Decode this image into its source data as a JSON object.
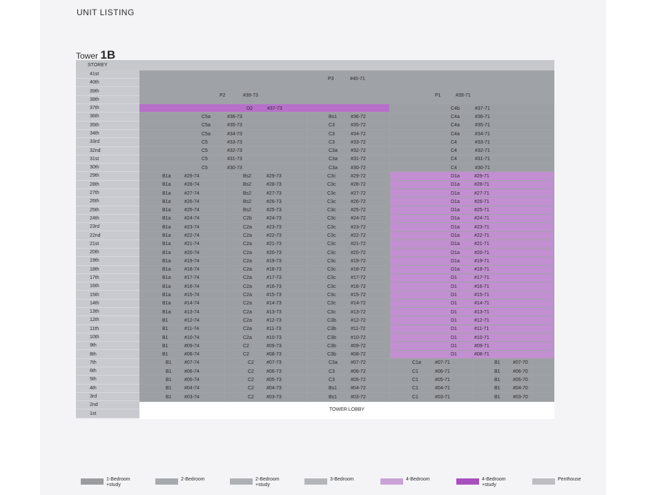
{
  "header": {
    "title": "UNIT LISTING"
  },
  "tower": {
    "label_prefix": "Tower",
    "label_suffix": "1B"
  },
  "table": {
    "storey_header": "STOREY",
    "storeys": [
      "41st",
      "40th",
      "39th",
      "38th",
      "37th",
      "36th",
      "35th",
      "34th",
      "33rd",
      "32nd",
      "31st",
      "30th",
      "29th",
      "28th",
      "27th",
      "26th",
      "25th",
      "24th",
      "23rd",
      "22nd",
      "21st",
      "20th",
      "19th",
      "18th",
      "17th",
      "16th",
      "15th",
      "14th",
      "13th",
      "12th",
      "11th",
      "10th",
      "9th",
      "8th",
      "7th",
      "6th",
      "5th",
      "4th",
      "3rd",
      "2nd",
      "1st"
    ],
    "penthouse_top": {
      "type": "P3",
      "unit": "#40-71"
    },
    "penthouse_left": {
      "type": "P2",
      "unit": "#39-73"
    },
    "penthouse_right": {
      "type": "P1",
      "unit": "#39-71"
    },
    "d2_row": {
      "type": "D2",
      "unit": "#37-73"
    },
    "d2_right": {
      "type": "C4b",
      "unit": "#37-71"
    },
    "upper_rows": [
      {
        "a": [
          "C5a",
          "#36-73"
        ],
        "b": [
          "Bs1",
          "#36-72"
        ],
        "c": [
          "C4a",
          "#36-71"
        ]
      },
      {
        "a": [
          "C5a",
          "#35-73"
        ],
        "b": [
          "C3",
          "#35-72"
        ],
        "c": [
          "C4a",
          "#35-71"
        ]
      },
      {
        "a": [
          "C5a",
          "#34-73"
        ],
        "b": [
          "C3",
          "#34-72"
        ],
        "c": [
          "C4a",
          "#34-71"
        ]
      },
      {
        "a": [
          "C5",
          "#33-73"
        ],
        "b": [
          "C3",
          "#33-72"
        ],
        "c": [
          "C4",
          "#33-71"
        ]
      },
      {
        "a": [
          "C5",
          "#32-73"
        ],
        "b": [
          "C3a",
          "#32-72"
        ],
        "c": [
          "C4",
          "#32-71"
        ]
      },
      {
        "a": [
          "C5",
          "#31-73"
        ],
        "b": [
          "C3a",
          "#31-72"
        ],
        "c": [
          "C4",
          "#31-71"
        ]
      },
      {
        "a": [
          "C5",
          "#30-73"
        ],
        "b": [
          "C3a",
          "#30-72"
        ],
        "c": [
          "C4",
          "#30-71"
        ]
      }
    ],
    "mid_rows": [
      {
        "a": [
          "B1a",
          "#29-74"
        ],
        "b": [
          "Bs2",
          "#29-73"
        ],
        "c": [
          "C3c",
          "#29-72"
        ],
        "d": [
          "D1a",
          "#29-71"
        ]
      },
      {
        "a": [
          "B1a",
          "#28-74"
        ],
        "b": [
          "Bs2",
          "#28-73"
        ],
        "c": [
          "C3c",
          "#28-72"
        ],
        "d": [
          "D1a",
          "#28-71"
        ]
      },
      {
        "a": [
          "B1a",
          "#27-74"
        ],
        "b": [
          "Bs2",
          "#27-73"
        ],
        "c": [
          "C3c",
          "#27-72"
        ],
        "d": [
          "D1a",
          "#27-71"
        ]
      },
      {
        "a": [
          "B1a",
          "#26-74"
        ],
        "b": [
          "Bs2",
          "#26-73"
        ],
        "c": [
          "C3c",
          "#26-72"
        ],
        "d": [
          "D1a",
          "#26-71"
        ]
      },
      {
        "a": [
          "B1a",
          "#25-74"
        ],
        "b": [
          "Bs2",
          "#25-73"
        ],
        "c": [
          "C3c",
          "#25-72"
        ],
        "d": [
          "D1a",
          "#25-71"
        ]
      },
      {
        "a": [
          "B1a",
          "#24-74"
        ],
        "b": [
          "C2b",
          "#24-73"
        ],
        "c": [
          "C3c",
          "#24-72"
        ],
        "d": [
          "D1a",
          "#24-71"
        ]
      },
      {
        "a": [
          "B1a",
          "#23-74"
        ],
        "b": [
          "C2a",
          "#23-73"
        ],
        "c": [
          "C3c",
          "#23-72"
        ],
        "d": [
          "D1a",
          "#23-71"
        ]
      },
      {
        "a": [
          "B1a",
          "#22-74"
        ],
        "b": [
          "C2a",
          "#22-73"
        ],
        "c": [
          "C3c",
          "#22-72"
        ],
        "d": [
          "D1a",
          "#22-71"
        ]
      },
      {
        "a": [
          "B1a",
          "#21-74"
        ],
        "b": [
          "C2a",
          "#21-73"
        ],
        "c": [
          "C3c",
          "#21-72"
        ],
        "d": [
          "D1a",
          "#21-71"
        ]
      },
      {
        "a": [
          "B1a",
          "#20-74"
        ],
        "b": [
          "C2a",
          "#20-73"
        ],
        "c": [
          "C3c",
          "#20-72"
        ],
        "d": [
          "D1a",
          "#20-71"
        ]
      },
      {
        "a": [
          "B1a",
          "#19-74"
        ],
        "b": [
          "C2a",
          "#19-73"
        ],
        "c": [
          "C3c",
          "#19-72"
        ],
        "d": [
          "D1a",
          "#19-71"
        ]
      },
      {
        "a": [
          "B1a",
          "#18-74"
        ],
        "b": [
          "C2a",
          "#18-73"
        ],
        "c": [
          "C3c",
          "#18-72"
        ],
        "d": [
          "D1a",
          "#18-71"
        ]
      },
      {
        "a": [
          "B1a",
          "#17-74"
        ],
        "b": [
          "C2a",
          "#17-73"
        ],
        "c": [
          "C3c",
          "#17-72"
        ],
        "d": [
          "D1",
          "#17-71"
        ]
      },
      {
        "a": [
          "B1a",
          "#16-74"
        ],
        "b": [
          "C2a",
          "#16-73"
        ],
        "c": [
          "C3c",
          "#16-72"
        ],
        "d": [
          "D1",
          "#16-71"
        ]
      },
      {
        "a": [
          "B1a",
          "#15-74"
        ],
        "b": [
          "C2a",
          "#15-73"
        ],
        "c": [
          "C3c",
          "#15-72"
        ],
        "d": [
          "D1",
          "#15-71"
        ]
      },
      {
        "a": [
          "B1a",
          "#14-74"
        ],
        "b": [
          "C2a",
          "#14-73"
        ],
        "c": [
          "C3c",
          "#14-72"
        ],
        "d": [
          "D1",
          "#14-71"
        ]
      },
      {
        "a": [
          "B1a",
          "#13-74"
        ],
        "b": [
          "C2a",
          "#13-73"
        ],
        "c": [
          "C3c",
          "#13-72"
        ],
        "d": [
          "D1",
          "#13-71"
        ]
      },
      {
        "a": [
          "B1",
          "#12-74"
        ],
        "b": [
          "C2a",
          "#12-73"
        ],
        "c": [
          "C3b",
          "#12-72"
        ],
        "d": [
          "D1",
          "#12-71"
        ]
      },
      {
        "a": [
          "B1",
          "#11-74"
        ],
        "b": [
          "C2a",
          "#11-73"
        ],
        "c": [
          "C3b",
          "#11-72"
        ],
        "d": [
          "D1",
          "#11-71"
        ]
      },
      {
        "a": [
          "B1",
          "#10-74"
        ],
        "b": [
          "C2a",
          "#10-73"
        ],
        "c": [
          "C3b",
          "#10-72"
        ],
        "d": [
          "D1",
          "#10-71"
        ]
      },
      {
        "a": [
          "B1",
          "#09-74"
        ],
        "b": [
          "C2",
          "#09-73"
        ],
        "c": [
          "C3b",
          "#09-72"
        ],
        "d": [
          "D1",
          "#09-71"
        ]
      },
      {
        "a": [
          "B1",
          "#08-74"
        ],
        "b": [
          "C2",
          "#08-73"
        ],
        "c": [
          "C3b",
          "#08-72"
        ],
        "d": [
          "D1",
          "#08-71"
        ]
      }
    ],
    "low_rows": [
      {
        "a": [
          "B1",
          "#07-74"
        ],
        "b": [
          "C2",
          "#07-73"
        ],
        "c": [
          "C3a",
          "#07-72"
        ],
        "d": [
          "C1a",
          "#07-71"
        ],
        "e": [
          "B1",
          "#07-70"
        ]
      },
      {
        "a": [
          "B1",
          "#06-74"
        ],
        "b": [
          "C2",
          "#06-73"
        ],
        "c": [
          "C3",
          "#06-72"
        ],
        "d": [
          "C1",
          "#06-71"
        ],
        "e": [
          "B1",
          "#06-70"
        ]
      },
      {
        "a": [
          "B1",
          "#05-74"
        ],
        "b": [
          "C2",
          "#05-73"
        ],
        "c": [
          "C3",
          "#05-72"
        ],
        "d": [
          "C1",
          "#05-71"
        ],
        "e": [
          "B1",
          "#05-70"
        ]
      },
      {
        "a": [
          "B1",
          "#04-74"
        ],
        "b": [
          "C2",
          "#04-73"
        ],
        "c": [
          "Bs1",
          "#04-72"
        ],
        "d": [
          "C1",
          "#04-71"
        ],
        "e": [
          "B1",
          "#04-70"
        ]
      },
      {
        "a": [
          "B1",
          "#03-74"
        ],
        "b": [
          "C2",
          "#03-73"
        ],
        "c": [
          "Bs1",
          "#03-72"
        ],
        "d": [
          "C1",
          "#03-71"
        ],
        "e": [
          "B1",
          "#03-70"
        ]
      }
    ],
    "lobby_label": "TOWER LOBBY"
  },
  "legend": [
    {
      "label": "1-Bedroom\n+study",
      "color": "#9a9ca0"
    },
    {
      "label": "2-Bedroom",
      "color": "#a5a8ac"
    },
    {
      "label": "2-Bedroom\n+study",
      "color": "#adb0b4"
    },
    {
      "label": "3-Bedroom",
      "color": "#b3b5b9"
    },
    {
      "label": "4-Bedroom",
      "color": "#c9a2d6"
    },
    {
      "label": "4-Bedroom\n+study",
      "color": "#a94fbd"
    },
    {
      "label": "Penthouse",
      "color": "#bcbec1"
    }
  ],
  "colors": {
    "grey": "#9c9fa3",
    "lilac": "#c28fd1",
    "purple": "#b86fca"
  }
}
